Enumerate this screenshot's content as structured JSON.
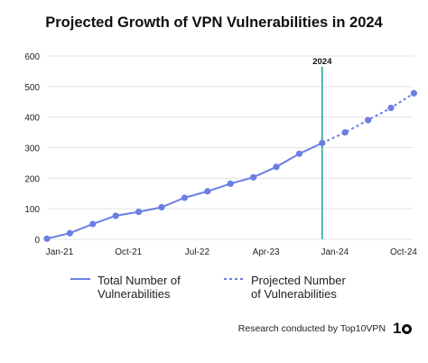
{
  "chart_data": {
    "type": "line",
    "title": "Projected Growth of VPN Vulnerabilities in 2024",
    "xlabel": "",
    "ylabel": "",
    "ylim": [
      0,
      600
    ],
    "yticks": [
      "0",
      "100",
      "200",
      "300",
      "400",
      "500",
      "600"
    ],
    "xtick_labels": [
      "Jan-21",
      "Oct-21",
      "Jul-22",
      "Apr-23",
      "Jan-24",
      "Oct-24"
    ],
    "grid": "horizontal",
    "legend_position": "bottom",
    "colors": {
      "series": "#6b7fe3",
      "marker_line": "#1aa39a",
      "grid": "#e3e3e3"
    },
    "annotation": {
      "label": "2024",
      "x_index": 12
    },
    "series": [
      {
        "name": "Total Number of Vulnerabilities",
        "style": "solid",
        "x_index": [
          0,
          1,
          2,
          3,
          4,
          5,
          6,
          7,
          8,
          9,
          10,
          11,
          12
        ],
        "values": [
          2,
          20,
          50,
          77,
          90,
          105,
          136,
          157,
          182,
          203,
          237,
          280,
          315
        ]
      },
      {
        "name": "Projected Number of Vulnerabilities",
        "style": "dashed",
        "x_index": [
          12,
          13,
          14,
          15,
          16
        ],
        "values": [
          315,
          350,
          390,
          430,
          478
        ]
      }
    ]
  },
  "footer": {
    "credit": "Research conducted by Top10VPN",
    "logo_text": "1"
  }
}
